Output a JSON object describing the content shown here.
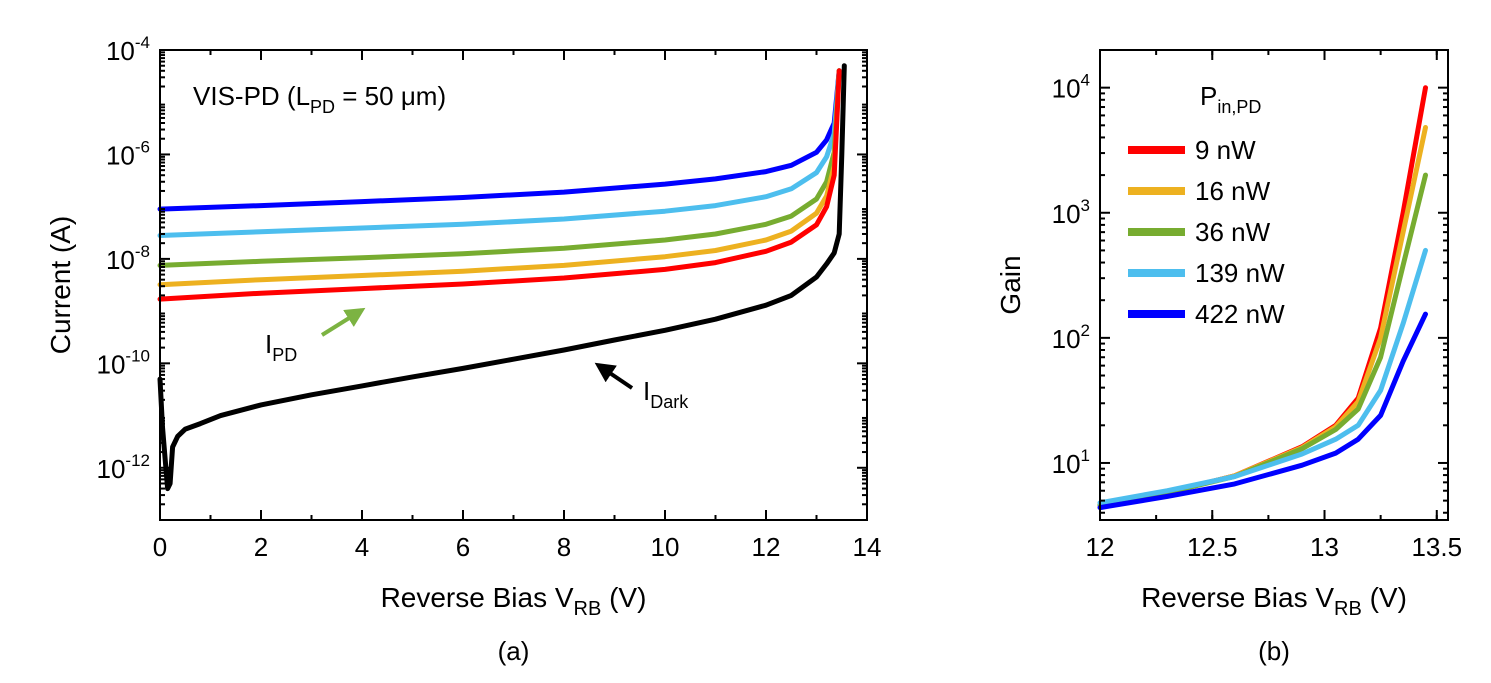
{
  "chart_data": [
    {
      "panel": "(a)",
      "type": "line",
      "yscale": "log",
      "xlabel": "Reverse Bias V",
      "xlabel_sub": "RB",
      "xlabel_unit": " (V)",
      "ylabel": "Current (A)",
      "xlim": [
        0,
        14
      ],
      "ylim": [
        1e-13,
        0.0001
      ],
      "x_ticks": [
        0,
        2,
        4,
        6,
        8,
        10,
        12,
        14
      ],
      "y_ticks": [
        {
          "value": 1e-12,
          "base": "10",
          "exp": "-12"
        },
        {
          "value": 1e-10,
          "base": "10",
          "exp": "-10"
        },
        {
          "value": 1e-08,
          "base": "10",
          "exp": "-8"
        },
        {
          "value": 1e-06,
          "base": "10",
          "exp": "-6"
        },
        {
          "value": 0.0001,
          "base": "10",
          "exp": "-4"
        }
      ],
      "annotation": {
        "prefix": "VIS-PD (L",
        "sub": "PD",
        "suffix": " = 50 μm)"
      },
      "arrow_labels": [
        {
          "main": "I",
          "sub": "PD",
          "color": "#7cb342"
        },
        {
          "main": "I",
          "sub": "Dark",
          "color": "#000000"
        }
      ],
      "series": [
        {
          "color": "#0000ff",
          "x": [
            0,
            2,
            4,
            6,
            8,
            10,
            11,
            12,
            12.5,
            13,
            13.2,
            13.35,
            13.45
          ],
          "y": [
            9e-08,
            1.05e-07,
            1.25e-07,
            1.5e-07,
            1.9e-07,
            2.7e-07,
            3.4e-07,
            4.7e-07,
            6.2e-07,
            1.1e-06,
            1.9e-06,
            4e-06,
            4e-05
          ]
        },
        {
          "color": "#4dbeee",
          "x": [
            0,
            2,
            4,
            6,
            8,
            10,
            11,
            12,
            12.5,
            13,
            13.2,
            13.35,
            13.45
          ],
          "y": [
            2.8e-08,
            3.3e-08,
            3.9e-08,
            4.6e-08,
            5.8e-08,
            8.2e-08,
            1.05e-07,
            1.55e-07,
            2.2e-07,
            4.5e-07,
            9e-07,
            2.5e-06,
            4e-05
          ]
        },
        {
          "color": "#77ac30",
          "x": [
            0,
            2,
            4,
            6,
            8,
            10,
            11,
            12,
            12.5,
            13,
            13.2,
            13.35,
            13.45
          ],
          "y": [
            7.5e-09,
            9e-09,
            1.05e-08,
            1.25e-08,
            1.6e-08,
            2.3e-08,
            3e-08,
            4.6e-08,
            6.6e-08,
            1.4e-07,
            3e-07,
            1.1e-06,
            4e-05
          ]
        },
        {
          "color": "#edb120",
          "x": [
            0,
            2,
            4,
            6,
            8,
            10,
            11,
            12,
            12.5,
            13,
            13.2,
            13.35,
            13.45
          ],
          "y": [
            3.2e-09,
            4e-09,
            4.8e-09,
            5.8e-09,
            7.5e-09,
            1.1e-08,
            1.45e-08,
            2.3e-08,
            3.4e-08,
            7.5e-08,
            1.6e-07,
            6e-07,
            4e-05
          ]
        },
        {
          "color": "#ff0000",
          "x": [
            0,
            2,
            4,
            6,
            8,
            10,
            11,
            12,
            12.5,
            13,
            13.2,
            13.35,
            13.45
          ],
          "y": [
            1.7e-09,
            2.2e-09,
            2.7e-09,
            3.3e-09,
            4.3e-09,
            6.3e-09,
            8.5e-09,
            1.4e-08,
            2.1e-08,
            4.5e-08,
            1e-07,
            4e-07,
            4e-05
          ]
        },
        {
          "color": "#000000",
          "x": [
            0,
            0.05,
            0.1,
            0.15,
            0.2,
            0.25,
            0.35,
            0.5,
            0.8,
            1.2,
            2,
            3,
            4,
            5,
            6,
            7,
            8,
            9,
            10,
            11,
            12,
            12.5,
            13,
            13.2,
            13.35,
            13.45,
            13.5,
            13.55
          ],
          "y": [
            5e-11,
            6e-12,
            1.5e-12,
            4e-13,
            5e-13,
            2.5e-12,
            4e-12,
            5.5e-12,
            7e-12,
            1e-11,
            1.6e-11,
            2.5e-11,
            3.7e-11,
            5.5e-11,
            8e-11,
            1.2e-10,
            1.8e-10,
            2.8e-10,
            4.3e-10,
            7e-10,
            1.3e-09,
            2e-09,
            4.5e-09,
            8e-09,
            1.3e-08,
            3e-08,
            1e-06,
            5e-05
          ]
        }
      ]
    },
    {
      "panel": "(b)",
      "type": "line",
      "yscale": "log",
      "xlabel": "Reverse Bias V",
      "xlabel_sub": "RB",
      "xlabel_unit": " (V)",
      "ylabel": "Gain",
      "xlim": [
        12,
        13.55
      ],
      "ylim": [
        3.5,
        20000
      ],
      "x_ticks": [
        12,
        12.5,
        13,
        13.5
      ],
      "y_ticks": [
        {
          "value": 10,
          "base": "10",
          "exp": "1"
        },
        {
          "value": 100,
          "base": "10",
          "exp": "2"
        },
        {
          "value": 1000,
          "base": "10",
          "exp": "3"
        },
        {
          "value": 10000,
          "base": "10",
          "exp": "4"
        }
      ],
      "legend_title": {
        "main": "P",
        "sub": "in,PD"
      },
      "legend_position": "top-left",
      "series": [
        {
          "name": "9 nW",
          "color": "#ff0000",
          "x": [
            12,
            12.3,
            12.6,
            12.9,
            13.05,
            13.15,
            13.25,
            13.35,
            13.45
          ],
          "y": [
            4.6,
            5.8,
            7.9,
            13.5,
            20,
            33,
            120,
            1000,
            10000
          ]
        },
        {
          "name": "16 nW",
          "color": "#edb120",
          "x": [
            12,
            12.3,
            12.6,
            12.9,
            13.05,
            13.15,
            13.25,
            13.35,
            13.45
          ],
          "y": [
            4.6,
            5.8,
            7.9,
            13.3,
            19.5,
            31,
            100,
            700,
            4800
          ]
        },
        {
          "name": "36 nW",
          "color": "#77ac30",
          "x": [
            12,
            12.3,
            12.6,
            12.9,
            13.05,
            13.15,
            13.25,
            13.35,
            13.45
          ],
          "y": [
            4.6,
            5.8,
            7.8,
            13,
            18.5,
            27,
            70,
            380,
            2000
          ]
        },
        {
          "name": "139 nW",
          "color": "#4dbeee",
          "x": [
            12,
            12.3,
            12.6,
            12.9,
            13.05,
            13.15,
            13.25,
            13.35,
            13.45
          ],
          "y": [
            4.8,
            6,
            7.8,
            11.8,
            15.5,
            20,
            38,
            130,
            500
          ]
        },
        {
          "name": "422 nW",
          "color": "#0000ff",
          "x": [
            12,
            12.3,
            12.6,
            12.9,
            13.05,
            13.15,
            13.25,
            13.35,
            13.45
          ],
          "y": [
            4.4,
            5.4,
            6.8,
            9.6,
            12,
            15.5,
            24,
            65,
            155
          ]
        }
      ]
    }
  ]
}
